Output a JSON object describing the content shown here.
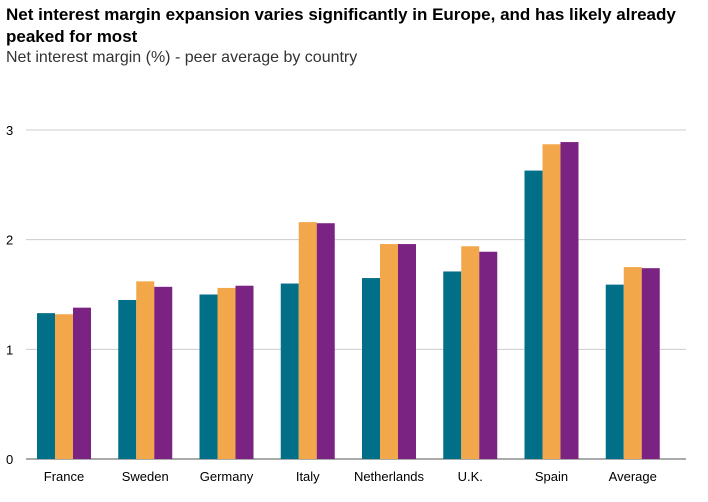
{
  "title": "Net interest margin expansion varies significantly in Europe, and has likely already peaked for most",
  "subtitle": "Net interest margin (%) - peer average by country",
  "colors": [
    "#006F87",
    "#F2A74A",
    "#7A2382"
  ],
  "chart_data": {
    "type": "bar",
    "title": "Net interest margin expansion varies significantly in Europe, and has likely already peaked for most",
    "subtitle": "Net interest margin (%) - peer average by country",
    "xlabel": "",
    "ylabel": "",
    "ylim": [
      0,
      3
    ],
    "yticks": [
      0,
      1,
      2,
      3
    ],
    "grid": true,
    "legend": "none",
    "categories": [
      "France",
      "Sweden",
      "Germany",
      "Italy",
      "Netherlands",
      "U.K.",
      "Spain",
      "Average"
    ],
    "series": [
      {
        "values": [
          1.33,
          1.45,
          1.5,
          1.6,
          1.65,
          1.71,
          2.63,
          1.59
        ]
      },
      {
        "values": [
          1.32,
          1.62,
          1.56,
          2.16,
          1.96,
          1.94,
          2.87,
          1.75
        ]
      },
      {
        "values": [
          1.38,
          1.57,
          1.58,
          2.15,
          1.96,
          1.89,
          2.89,
          1.74
        ]
      }
    ]
  }
}
